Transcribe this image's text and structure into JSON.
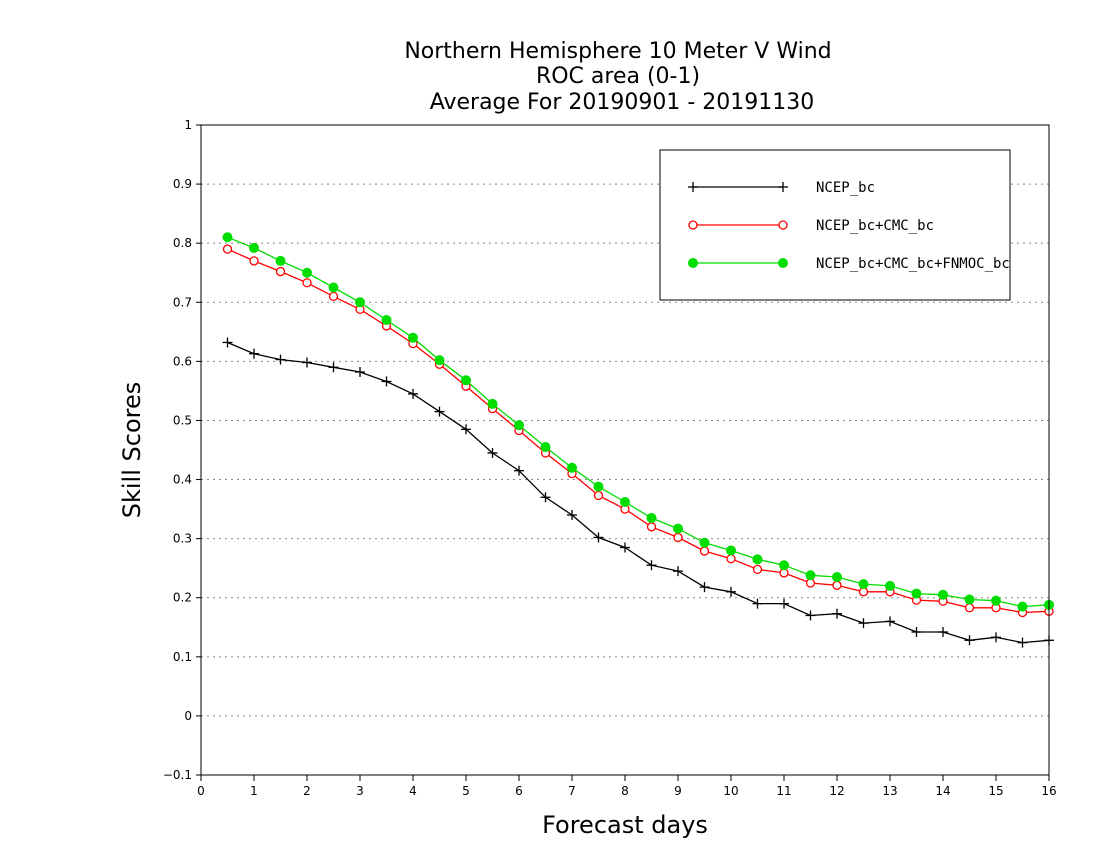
{
  "chart_data": {
    "type": "line",
    "title_lines": [
      "Northern Hemisphere 10 Meter V Wind",
      "ROC area (0-1)",
      "Average For 20190901 - 20191130"
    ],
    "xlabel": "Forecast days",
    "ylabel": "Skill Scores",
    "xlim": [
      0,
      16
    ],
    "ylim": [
      -0.1,
      1
    ],
    "x_ticks": [
      "0",
      "1",
      "2",
      "3",
      "4",
      "5",
      "6",
      "7",
      "8",
      "9",
      "10",
      "11",
      "12",
      "13",
      "14",
      "15",
      "16"
    ],
    "y_ticks": [
      "−0.1",
      "0",
      "0.1",
      "0.2",
      "0.3",
      "0.4",
      "0.5",
      "0.6",
      "0.7",
      "0.8",
      "0.9",
      "1"
    ],
    "grid": "horizontal dotted",
    "legend_position": "top-right",
    "x": [
      0.5,
      1,
      1.5,
      2,
      2.5,
      3,
      3.5,
      4,
      4.5,
      5,
      5.5,
      6,
      6.5,
      7,
      7.5,
      8,
      8.5,
      9,
      9.5,
      10,
      10.5,
      11,
      11.5,
      12,
      12.5,
      13,
      13.5,
      14,
      14.5,
      15,
      15.5,
      16
    ],
    "series": [
      {
        "name": "NCEP_bc",
        "color": "#000000",
        "marker": "plus",
        "values": [
          0.632,
          0.613,
          0.603,
          0.598,
          0.59,
          0.582,
          0.566,
          0.545,
          0.515,
          0.485,
          0.445,
          0.415,
          0.37,
          0.34,
          0.302,
          0.285,
          0.255,
          0.245,
          0.218,
          0.21,
          0.19,
          0.19,
          0.17,
          0.173,
          0.157,
          0.16,
          0.142,
          0.142,
          0.128,
          0.133,
          0.124,
          0.128
        ]
      },
      {
        "name": "NCEP_bc+CMC_bc",
        "color": "#ff0000",
        "marker": "open-circle",
        "values": [
          0.79,
          0.77,
          0.752,
          0.733,
          0.71,
          0.688,
          0.66,
          0.63,
          0.595,
          0.558,
          0.52,
          0.483,
          0.445,
          0.41,
          0.373,
          0.35,
          0.32,
          0.302,
          0.279,
          0.266,
          0.248,
          0.242,
          0.225,
          0.221,
          0.21,
          0.21,
          0.196,
          0.194,
          0.183,
          0.183,
          0.175,
          0.177
        ]
      },
      {
        "name": "NCEP_bc+CMC_bc+FNMOC_bc",
        "color": "#00dd00",
        "marker": "filled-circle",
        "values": [
          0.81,
          0.792,
          0.77,
          0.75,
          0.725,
          0.7,
          0.67,
          0.64,
          0.602,
          0.568,
          0.528,
          0.492,
          0.455,
          0.42,
          0.388,
          0.362,
          0.335,
          0.317,
          0.293,
          0.28,
          0.265,
          0.255,
          0.238,
          0.235,
          0.223,
          0.22,
          0.207,
          0.205,
          0.197,
          0.195,
          0.185,
          0.188
        ]
      }
    ]
  }
}
